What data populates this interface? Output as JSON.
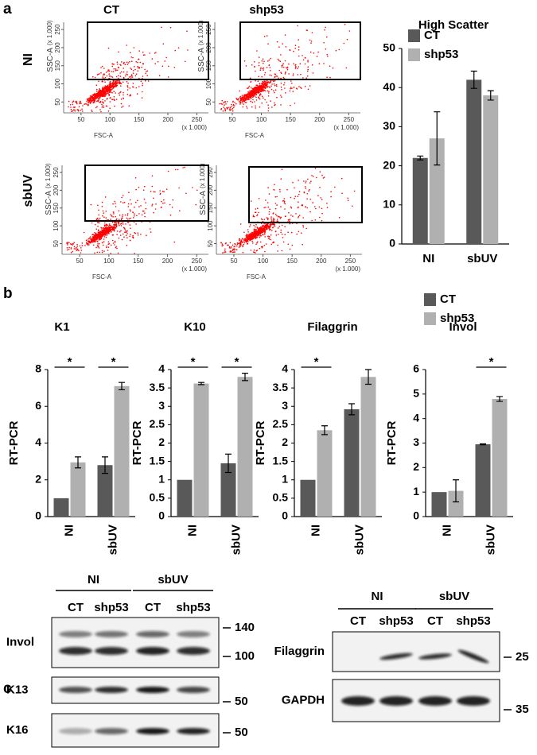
{
  "panel_labels": [
    "a",
    "b",
    "c"
  ],
  "flow_cytometry": {
    "columns": [
      "CT",
      "shp53"
    ],
    "rows": [
      "NI",
      "sbUV"
    ],
    "x_label": "FSC-A",
    "y_label": "SSC-A",
    "scale_label": "(x 1.000)",
    "xlim": [
      20,
      270
    ],
    "ylim": [
      20,
      270
    ],
    "xticks": [
      50,
      100,
      150,
      200,
      250
    ],
    "yticks": [
      50,
      100,
      150,
      200,
      250
    ],
    "dot_color": "#ff0000"
  },
  "chart_data": [
    {
      "type": "bar",
      "title": "High Scatter",
      "categories": [
        "NI",
        "sbUV"
      ],
      "ylim": [
        0,
        50
      ],
      "yticks": [
        0,
        10,
        20,
        30,
        40,
        50
      ],
      "legend": "upper left",
      "series": [
        {
          "name": "CT",
          "color": "#595959",
          "values": [
            22,
            42
          ],
          "errors": [
            0.5,
            2.2
          ]
        },
        {
          "name": "shp53",
          "color": "#b0b0b0",
          "values": [
            27,
            38
          ],
          "errors": [
            6.8,
            1.2
          ]
        }
      ]
    },
    {
      "type": "bar",
      "title": "K1",
      "ylabel": "RT-PCR",
      "categories": [
        "NI",
        "sbUV"
      ],
      "ylim": [
        0,
        8
      ],
      "yticks": [
        0,
        2,
        4,
        6,
        8
      ],
      "significance": [
        "*",
        "*"
      ],
      "series": [
        {
          "color": "#595959",
          "values": [
            1,
            2.8
          ],
          "errors": [
            null,
            0.45
          ]
        },
        {
          "color": "#b0b0b0",
          "values": [
            2.95,
            7.1
          ],
          "errors": [
            0.3,
            0.2
          ]
        }
      ]
    },
    {
      "type": "bar",
      "title": "K10",
      "ylabel": "RT-PCR",
      "categories": [
        "NI",
        "sbUV"
      ],
      "ylim": [
        0,
        4
      ],
      "yticks": [
        0,
        0.5,
        1,
        1.5,
        2,
        2.5,
        3,
        3.5,
        4
      ],
      "significance": [
        "*",
        "*"
      ],
      "series": [
        {
          "color": "#595959",
          "values": [
            1,
            1.45
          ],
          "errors": [
            null,
            0.25
          ]
        },
        {
          "color": "#b0b0b0",
          "values": [
            3.62,
            3.8
          ],
          "errors": [
            0.03,
            0.1
          ]
        }
      ]
    },
    {
      "type": "bar",
      "title": "Filaggrin",
      "ylabel": "RT-PCR",
      "categories": [
        "NI",
        "sbUV"
      ],
      "ylim": [
        0,
        4
      ],
      "yticks": [
        0,
        0.5,
        1,
        1.5,
        2,
        2.5,
        3,
        3.5,
        4
      ],
      "significance": [
        "*",
        null
      ],
      "series": [
        {
          "color": "#595959",
          "values": [
            1,
            2.92
          ],
          "errors": [
            null,
            0.15
          ]
        },
        {
          "color": "#b0b0b0",
          "values": [
            2.35,
            3.8
          ],
          "errors": [
            0.12,
            0.2
          ]
        }
      ]
    },
    {
      "type": "bar",
      "title": "Invol",
      "ylabel": "RT-PCR",
      "categories": [
        "NI",
        "sbUV"
      ],
      "ylim": [
        0,
        6
      ],
      "yticks": [
        0,
        1,
        2,
        3,
        4,
        5,
        6
      ],
      "significance": [
        null,
        "*"
      ],
      "legend": "upper left",
      "series": [
        {
          "name": "CT",
          "color": "#595959",
          "values": [
            1,
            2.95
          ],
          "errors": [
            null,
            0.02
          ]
        },
        {
          "name": "shp53",
          "color": "#b0b0b0",
          "values": [
            1.05,
            4.8
          ],
          "errors": [
            0.45,
            0.1
          ]
        }
      ]
    }
  ],
  "western_blots": [
    {
      "groups": [
        "NI",
        "sbUV"
      ],
      "lanes": [
        "CT",
        "shp53",
        "CT",
        "shp53"
      ],
      "rows": [
        {
          "label": "Invol",
          "markers": [
            140,
            100
          ]
        },
        {
          "label": "K13",
          "markers": [
            50
          ]
        },
        {
          "label": "K16",
          "markers": [
            50
          ]
        }
      ]
    },
    {
      "groups": [
        "NI",
        "sbUV"
      ],
      "lanes": [
        "CT",
        "shp53",
        "CT",
        "shp53"
      ],
      "rows": [
        {
          "label": "Filaggrin",
          "markers": [
            25
          ]
        },
        {
          "label": "GAPDH",
          "markers": [
            35
          ]
        }
      ]
    }
  ]
}
